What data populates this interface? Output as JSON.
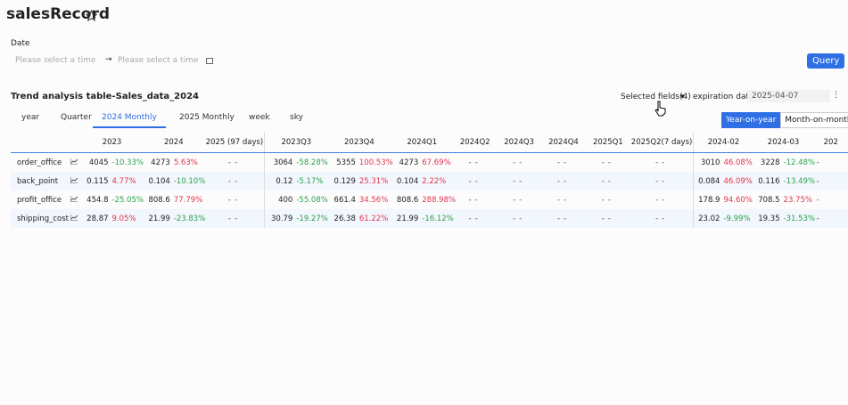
{
  "header": {
    "title": "salesRecord"
  },
  "filter": {
    "label": "Date",
    "start_placeholder": "Please select a time",
    "end_placeholder": "Please select a time",
    "query": "Query"
  },
  "section": {
    "title": "Trend analysis table-Sales_data_2024",
    "selected_fields": "Selected fields(4)",
    "expiration_label": "expiration date",
    "expiration_value": "2025-04-07"
  },
  "tabs": [
    "year",
    "Quarter",
    "2024 Monthly",
    "2025 Monthly",
    "week",
    "sky"
  ],
  "toggle": [
    "Year-on-year",
    "Month-on-month"
  ],
  "table": {
    "columns": [
      "2023",
      "2024",
      "2025 (97 days)",
      "2023Q3",
      "2023Q4",
      "2024Q1",
      "2024Q2",
      "2024Q3",
      "2024Q4",
      "2025Q1",
      "2025Q2(7 days)",
      "2024-02",
      "2024-03",
      "202"
    ],
    "rows": [
      {
        "name": "order_office",
        "cells": [
          [
            "4045",
            "-10.33%"
          ],
          [
            "4273",
            "5.63%"
          ],
          [
            "-",
            "-"
          ],
          [
            "3064",
            "-58.28%"
          ],
          [
            "5355",
            "100.53%"
          ],
          [
            "4273",
            "67.69%"
          ],
          [
            "-",
            "-"
          ],
          [
            "-",
            "-"
          ],
          [
            "-",
            "-"
          ],
          [
            "-",
            "-"
          ],
          [
            "-",
            "-"
          ],
          [
            "3010",
            "46.08%"
          ],
          [
            "3228",
            "-12.48%"
          ],
          [
            "-"
          ]
        ]
      },
      {
        "name": "back_point",
        "cells": [
          [
            "0.115",
            "4.77%"
          ],
          [
            "0.104",
            "-10.10%"
          ],
          [
            "-",
            "-"
          ],
          [
            "0.12",
            "-5.17%"
          ],
          [
            "0.129",
            "25.31%"
          ],
          [
            "0.104",
            "2.22%"
          ],
          [
            "-",
            "-"
          ],
          [
            "-",
            "-"
          ],
          [
            "-",
            "-"
          ],
          [
            "-",
            "-"
          ],
          [
            "-",
            "-"
          ],
          [
            "0.084",
            "46.09%"
          ],
          [
            "0.116",
            "-13.49%"
          ],
          [
            "-"
          ]
        ]
      },
      {
        "name": "profit_office",
        "cells": [
          [
            "454.8",
            "-25.05%"
          ],
          [
            "808.6",
            "77.79%"
          ],
          [
            "-",
            "-"
          ],
          [
            "400",
            "-55.08%"
          ],
          [
            "661.4",
            "34.56%"
          ],
          [
            "808.6",
            "288.98%"
          ],
          [
            "-",
            "-"
          ],
          [
            "-",
            "-"
          ],
          [
            "-",
            "-"
          ],
          [
            "-",
            "-"
          ],
          [
            "-",
            "-"
          ],
          [
            "178.9",
            "94.60%"
          ],
          [
            "708.5",
            "23.75%"
          ],
          [
            "-"
          ]
        ]
      },
      {
        "name": "shipping_cost",
        "cells": [
          [
            "28.87",
            "9.05%"
          ],
          [
            "21.99",
            "-23.83%"
          ],
          [
            "-",
            "-"
          ],
          [
            "30.79",
            "-19.27%"
          ],
          [
            "26.38",
            "61.22%"
          ],
          [
            "21.99",
            "-16.12%"
          ],
          [
            "-",
            "-"
          ],
          [
            "-",
            "-"
          ],
          [
            "-",
            "-"
          ],
          [
            "-",
            "-"
          ],
          [
            "-",
            "-"
          ],
          [
            "23.02",
            "-9.99%"
          ],
          [
            "19.35",
            "-31.53%"
          ],
          [
            "-"
          ]
        ]
      }
    ]
  }
}
